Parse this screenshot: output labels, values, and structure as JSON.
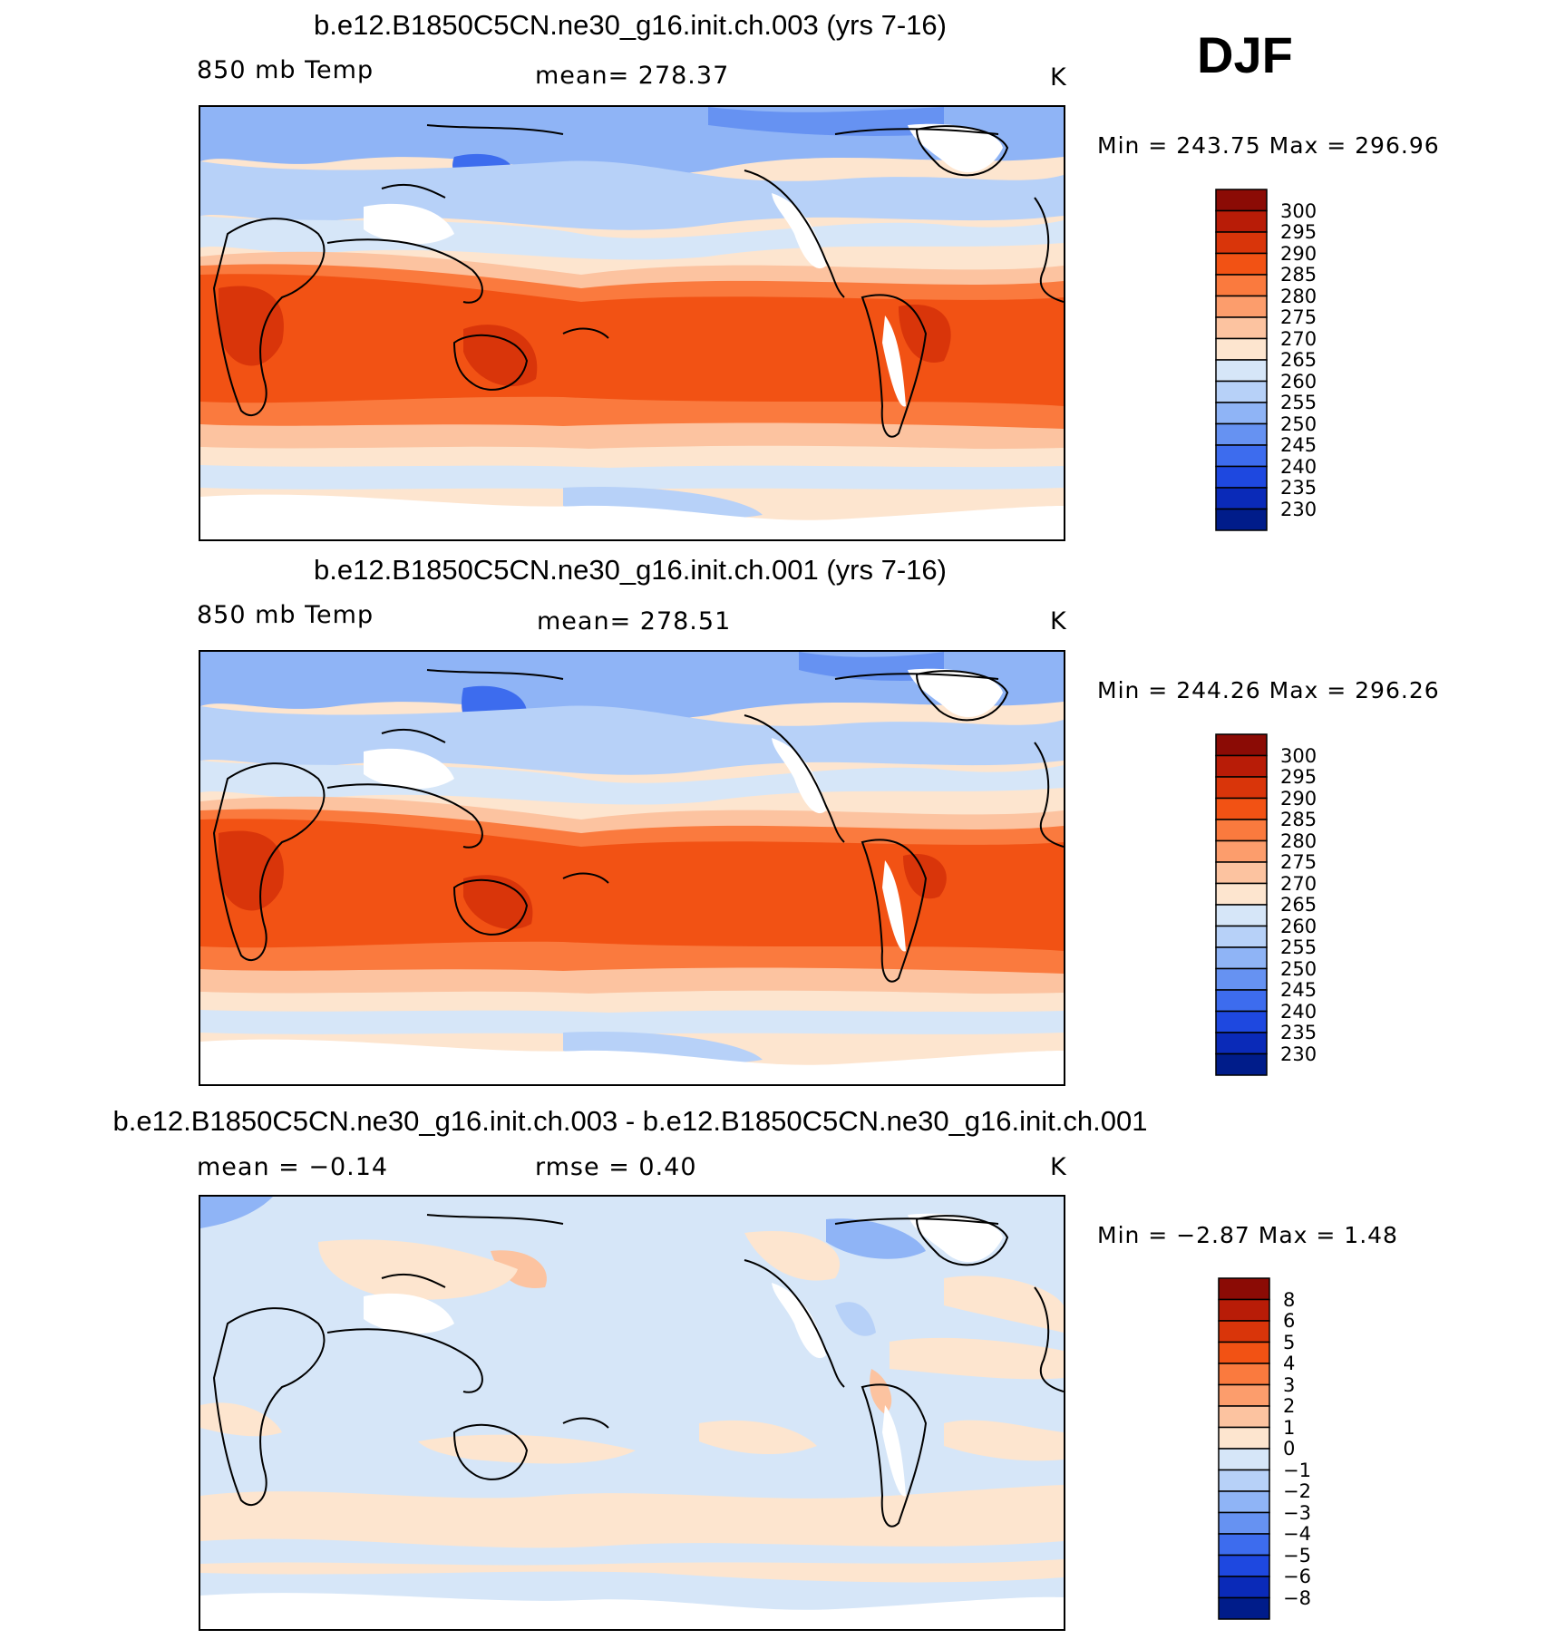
{
  "season": "DJF",
  "units": "K",
  "panels": [
    {
      "title": "b.e12.B1850C5CN.ne30_g16.init.ch.003 (yrs 7-16)",
      "variable": "850 mb Temp",
      "stat_text": "mean=  278.37",
      "units": "K",
      "minmax": "Min  =  243.75  Max  =  296.96"
    },
    {
      "title": "b.e12.B1850C5CN.ne30_g16.init.ch.001 (yrs 7-16)",
      "variable": "850 mb Temp",
      "stat_text": "mean=  278.51",
      "units": "K",
      "minmax": "Min  =  244.26  Max  =  296.26"
    },
    {
      "title": "b.e12.B1850C5CN.ne30_g16.init.ch.003 - b.e12.B1850C5CN.ne30_g16.init.ch.001",
      "variable": "mean  =    −0.14",
      "stat_text": "rmse  =     0.40",
      "units": "K",
      "minmax": "Min  =    −2.87  Max  =     1.48"
    }
  ],
  "colorbar_abs": {
    "labels": [
      "300",
      "295",
      "290",
      "285",
      "280",
      "275",
      "270",
      "265",
      "260",
      "255",
      "250",
      "245",
      "240",
      "235",
      "230"
    ],
    "colors": [
      "#8b0b05",
      "#b81c07",
      "#d9350a",
      "#f25214",
      "#fa7a3e",
      "#fc9d6c",
      "#fcc3a0",
      "#fde5cf",
      "#d6e6f8",
      "#b7d1f8",
      "#8fb4f6",
      "#6692f2",
      "#3d6cee",
      "#1e48e0",
      "#0a2ab8",
      "#001c8a"
    ]
  },
  "colorbar_diff": {
    "labels": [
      "8",
      "6",
      "5",
      "4",
      "3",
      "2",
      "1",
      "0",
      "−1",
      "−2",
      "−3",
      "−4",
      "−5",
      "−6",
      "−8"
    ],
    "colors": [
      "#8b0b05",
      "#b81c07",
      "#d9350a",
      "#f25214",
      "#fa7a3e",
      "#fc9d6c",
      "#fcc3a0",
      "#fde5cf",
      "#d6e6f8",
      "#b7d1f8",
      "#8fb4f6",
      "#6692f2",
      "#3d6cee",
      "#1e48e0",
      "#0a2ab8",
      "#001c8a"
    ]
  }
}
